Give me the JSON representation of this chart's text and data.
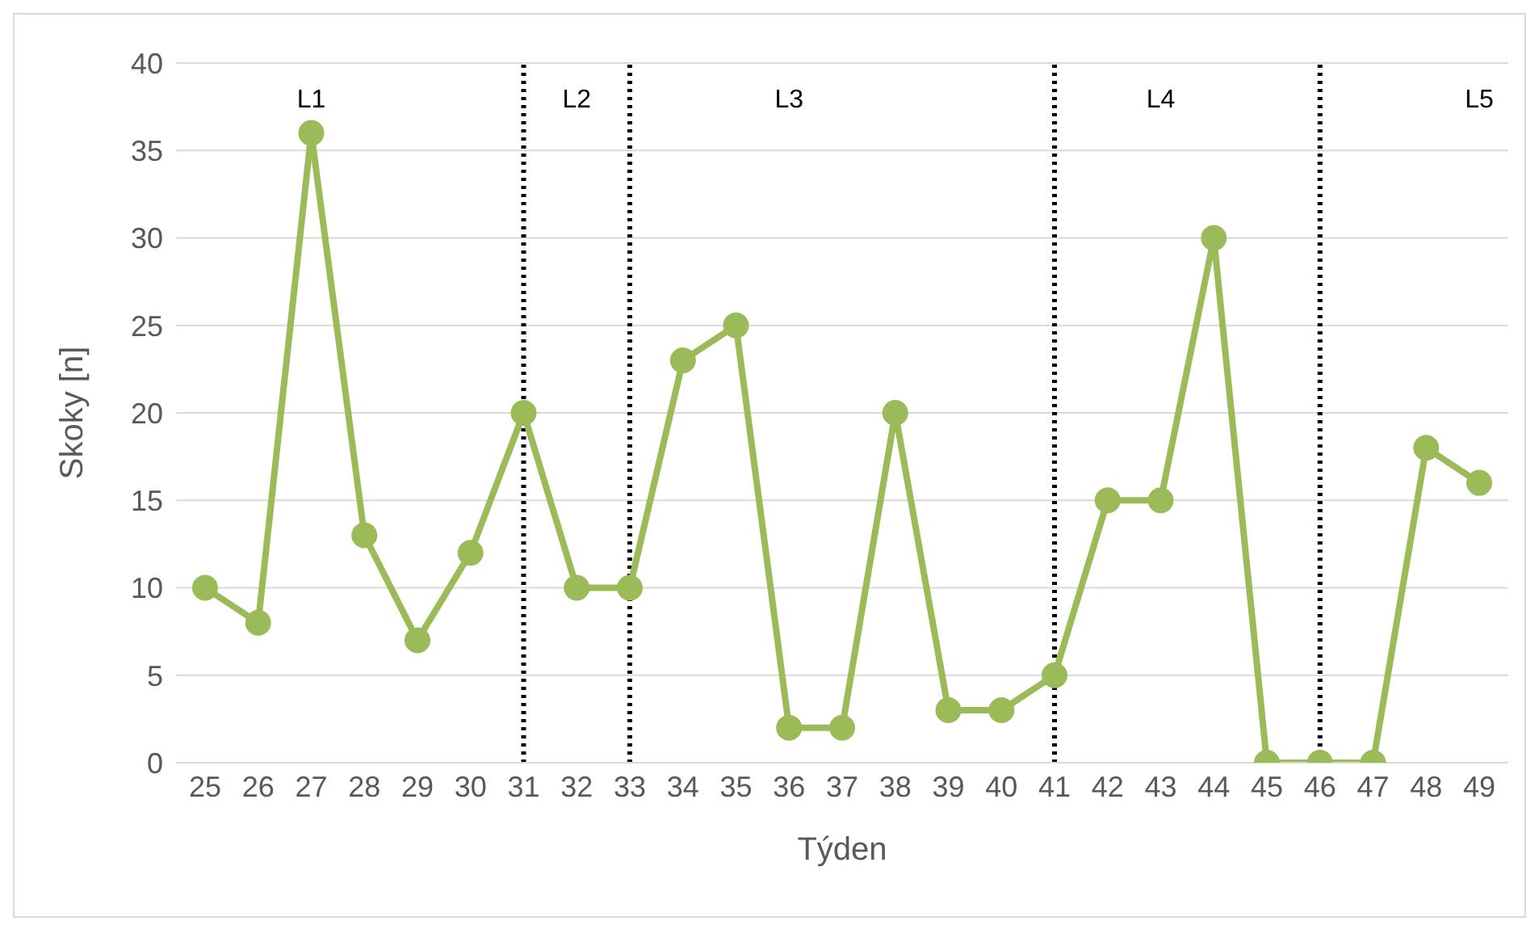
{
  "chart_data": {
    "type": "line",
    "xlabel": "Týden",
    "ylabel": "Skoky [n]",
    "categories": [
      "25",
      "26",
      "27",
      "28",
      "29",
      "30",
      "31",
      "32",
      "33",
      "34",
      "35",
      "36",
      "37",
      "38",
      "39",
      "40",
      "41",
      "42",
      "43",
      "44",
      "45",
      "46",
      "47",
      "48",
      "49"
    ],
    "series": [
      {
        "color": "#9bbb59",
        "values": [
          10,
          8,
          36,
          13,
          7,
          12,
          20,
          10,
          10,
          23,
          25,
          2,
          2,
          20,
          3,
          3,
          5,
          15,
          15,
          30,
          0,
          0,
          0,
          18,
          16
        ]
      }
    ],
    "ylim": [
      0,
      40
    ],
    "yticks": [
      0,
      5,
      10,
      15,
      20,
      25,
      30,
      35,
      40
    ],
    "grid": "y",
    "marker": "circle",
    "line_style": "solid",
    "ref_lines": [
      {
        "axis": "x",
        "value": "31",
        "color": "#000000",
        "line_style": "dotted"
      },
      {
        "axis": "x",
        "value": "33",
        "color": "#000000",
        "line_style": "dotted"
      },
      {
        "axis": "x",
        "value": "41",
        "color": "#000000",
        "line_style": "dotted"
      },
      {
        "axis": "x",
        "value": "46",
        "color": "#000000",
        "line_style": "dotted"
      }
    ],
    "annotations": [
      {
        "text": "L1",
        "x": "27",
        "y": 38
      },
      {
        "text": "L2",
        "x": "32",
        "y": 38
      },
      {
        "text": "L3",
        "x": "36",
        "y": 38
      },
      {
        "text": "L4",
        "x": "43",
        "y": 38
      },
      {
        "text": "L5",
        "x": "49",
        "y": 38
      }
    ]
  }
}
